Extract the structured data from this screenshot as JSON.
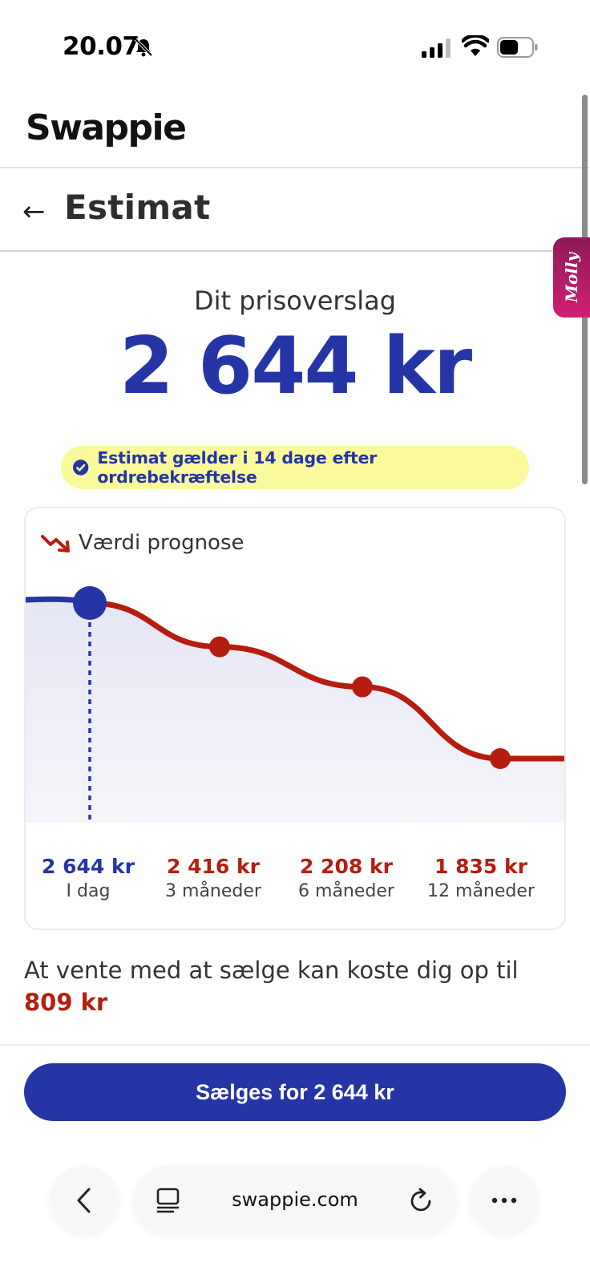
{
  "status_bar": {
    "time": "20.07"
  },
  "header": {
    "logo": "Swappie"
  },
  "title_row": {
    "back_label": "←",
    "title": "Estimat"
  },
  "side_widget": {
    "label": "Molly"
  },
  "estimate": {
    "label": "Dit prisoverslag",
    "price": "2 644 kr",
    "validity": "Estimat gælder i 14 dage efter ordrebekræftelse"
  },
  "forecast": {
    "title": "Værdi prognose",
    "points": [
      {
        "price": "2 644 kr",
        "period": "I dag"
      },
      {
        "price": "2 416 kr",
        "period": "3 måneder"
      },
      {
        "price": "2 208 kr",
        "period": "6 måneder"
      },
      {
        "price": "1 835 kr",
        "period": "12 måneder"
      }
    ]
  },
  "chart_data": {
    "type": "line",
    "title": "Værdi prognose",
    "x": [
      "I dag",
      "3 måneder",
      "6 måneder",
      "12 måneder"
    ],
    "series": [
      {
        "values": [
          2644,
          2416,
          2208,
          1835
        ]
      }
    ],
    "xlabel": "",
    "ylabel": "",
    "grid": false,
    "legend": "none"
  },
  "warning": {
    "text": "At vente med at sælge kan koste dig op til",
    "amount": "809 kr"
  },
  "cta": {
    "label": "Sælges for 2 644 kr"
  },
  "browser": {
    "url": "swappie.com"
  },
  "colors": {
    "brand_blue": "#2535a6",
    "loss_red": "#b51e0e",
    "pill_yellow": "#fafa9c",
    "molly_pink": "#d21f74"
  }
}
